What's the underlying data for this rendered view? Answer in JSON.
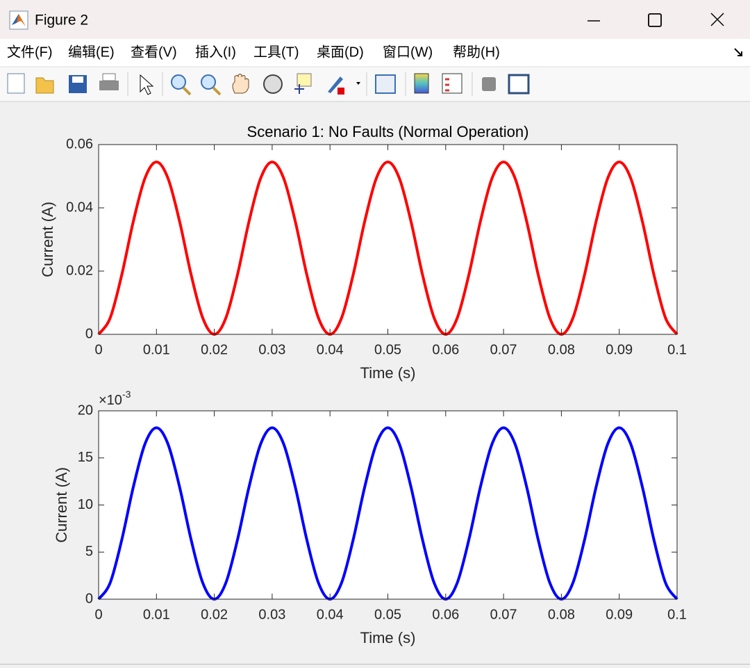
{
  "window": {
    "title": "Figure 2",
    "menu": [
      "文件(F)",
      "编辑(E)",
      "查看(V)",
      "插入(I)",
      "工具(T)",
      "桌面(D)",
      "窗口(W)",
      "帮助(H)"
    ]
  },
  "chart_data": [
    {
      "type": "line",
      "title": "Scenario 1: No Faults (Normal Operation)",
      "xlabel": "Time (s)",
      "ylabel": "Current (A)",
      "x": [
        0,
        0.002,
        0.004,
        0.006,
        0.008,
        0.01,
        0.012,
        0.014,
        0.016,
        0.018,
        0.02,
        0.022,
        0.024,
        0.026,
        0.028,
        0.03,
        0.032,
        0.034,
        0.036,
        0.038,
        0.04,
        0.042,
        0.044,
        0.046,
        0.048,
        0.05,
        0.052,
        0.054,
        0.056,
        0.058,
        0.06,
        0.062,
        0.064,
        0.066,
        0.068,
        0.07,
        0.072,
        0.074,
        0.076,
        0.078,
        0.08,
        0.082,
        0.084,
        0.086,
        0.088,
        0.09,
        0.092,
        0.094,
        0.096,
        0.098,
        0.1
      ],
      "values": [
        0,
        0.0052,
        0.0188,
        0.0357,
        0.0493,
        0.0545,
        0.0493,
        0.0357,
        0.0188,
        0.0052,
        0,
        0.0052,
        0.0188,
        0.0357,
        0.0493,
        0.0545,
        0.0493,
        0.0357,
        0.0188,
        0.0052,
        0,
        0.0052,
        0.0188,
        0.0357,
        0.0493,
        0.0545,
        0.0493,
        0.0357,
        0.0188,
        0.0052,
        0,
        0.0052,
        0.0188,
        0.0357,
        0.0493,
        0.0545,
        0.0493,
        0.0357,
        0.0188,
        0.0052,
        0,
        0.0052,
        0.0188,
        0.0357,
        0.0493,
        0.0545,
        0.0493,
        0.0357,
        0.0188,
        0.0052,
        0
      ],
      "color": "#ff0000",
      "xlim": [
        0,
        0.1
      ],
      "ylim": [
        0,
        0.06
      ],
      "xticks": [
        0,
        0.01,
        0.02,
        0.03,
        0.04,
        0.05,
        0.06,
        0.07,
        0.08,
        0.09,
        0.1
      ],
      "yticks": [
        0,
        0.02,
        0.04,
        0.06
      ]
    },
    {
      "type": "line",
      "xlabel": "Time (s)",
      "ylabel": "Current (A)",
      "y_multiplier": "×10",
      "y_multiplier_exponent": "-3",
      "x": [
        0,
        0.002,
        0.004,
        0.006,
        0.008,
        0.01,
        0.012,
        0.014,
        0.016,
        0.018,
        0.02,
        0.022,
        0.024,
        0.026,
        0.028,
        0.03,
        0.032,
        0.034,
        0.036,
        0.038,
        0.04,
        0.042,
        0.044,
        0.046,
        0.048,
        0.05,
        0.052,
        0.054,
        0.056,
        0.058,
        0.06,
        0.062,
        0.064,
        0.066,
        0.068,
        0.07,
        0.072,
        0.074,
        0.076,
        0.078,
        0.08,
        0.082,
        0.084,
        0.086,
        0.088,
        0.09,
        0.092,
        0.094,
        0.096,
        0.098,
        0.1
      ],
      "values": [
        0,
        1.74,
        6.29,
        11.91,
        16.46,
        18.2,
        16.46,
        11.91,
        6.29,
        1.74,
        0,
        1.74,
        6.29,
        11.91,
        16.46,
        18.2,
        16.46,
        11.91,
        6.29,
        1.74,
        0,
        1.74,
        6.29,
        11.91,
        16.46,
        18.2,
        16.46,
        11.91,
        6.29,
        1.74,
        0,
        1.74,
        6.29,
        11.91,
        16.46,
        18.2,
        16.46,
        11.91,
        6.29,
        1.74,
        0,
        1.74,
        6.29,
        11.91,
        16.46,
        18.2,
        16.46,
        11.91,
        6.29,
        1.74,
        0
      ],
      "color": "#0000ff",
      "xlim": [
        0,
        0.1
      ],
      "ylim": [
        0,
        20
      ],
      "xticks": [
        0,
        0.01,
        0.02,
        0.03,
        0.04,
        0.05,
        0.06,
        0.07,
        0.08,
        0.09,
        0.1
      ],
      "yticks": [
        0,
        5,
        10,
        15,
        20
      ]
    }
  ]
}
